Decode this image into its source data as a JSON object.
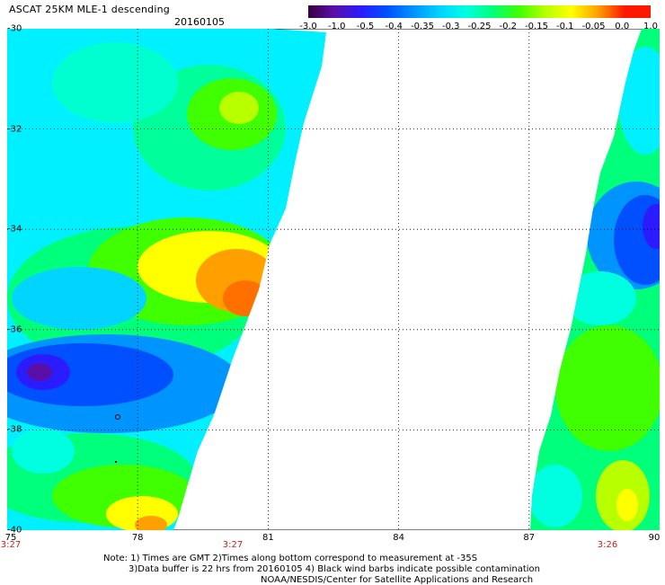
{
  "header": {
    "title": "ASCAT 25KM MLE-1 descending",
    "date": "20160105"
  },
  "colorbar": {
    "labels": [
      "-3.0",
      "-1.0",
      "-0.5",
      "-0.4",
      "-0.35",
      "-0.3",
      "-0.25",
      "-0.2",
      "-0.15",
      "-0.1",
      "-0.05",
      "0.0",
      "1.0"
    ],
    "colors": [
      "#3a0040",
      "#5a10a8",
      "#2a1cff",
      "#0050ff",
      "#0094ff",
      "#00d4ff",
      "#00ffe0",
      "#00ff7a",
      "#40ff00",
      "#b8ff00",
      "#ffff00",
      "#ffa000",
      "#ff1800"
    ]
  },
  "map": {
    "lat_labels": [
      "-30",
      "-32",
      "-34",
      "-36",
      "-38",
      "-40"
    ],
    "lon_labels": [
      "75",
      "78",
      "81",
      "84",
      "87",
      "90"
    ],
    "time_labels": [
      "3:27",
      "3:27",
      "3:26"
    ]
  },
  "notes": {
    "line1": "Note: 1) Times are GMT 2)Times along bottom correspond to measurement at -35S",
    "line2": "3)Data buffer is 22 hrs from 20160105 4) Black wind barbs indicate possible contamination",
    "line3": "NOAA/NESDIS/Center for Satellite Applications and Research"
  }
}
